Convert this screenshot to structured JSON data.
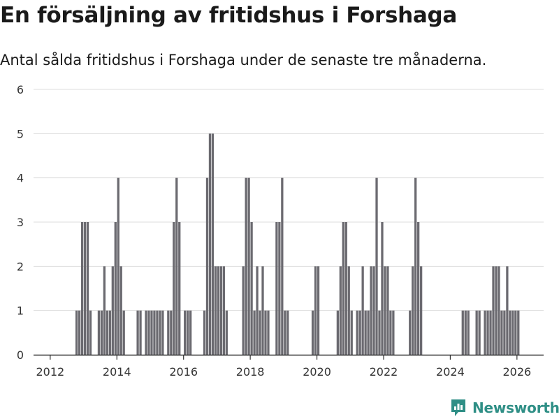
{
  "title": "En försäljning av fritidshus i Forshaga",
  "subtitle": "Antal sålda fritidshus i Forshaga under de senaste tre månaderna.",
  "brand": {
    "name": "Newsworthy",
    "color": "#2f8f86"
  },
  "colors": {
    "bar": "#6b6a70",
    "highlight": "#1aa394",
    "grid": "#dddddd",
    "axis": "#333333"
  },
  "chart_data": {
    "type": "bar",
    "title": "En försäljning av fritidshus i Forshaga",
    "xlabel": "",
    "ylabel": "",
    "ylim": [
      0,
      6
    ],
    "yticks": [
      "0",
      "1",
      "2",
      "3",
      "4",
      "5",
      "6"
    ],
    "xlim": [
      2011.5,
      2026.8
    ],
    "xticks": [
      "2012",
      "2014",
      "2016",
      "2018",
      "2020",
      "2022",
      "2024",
      "2026"
    ],
    "x_start": 2011.5,
    "x_step": 0.08333,
    "series": [
      {
        "name": "Antal sålda fritidshus",
        "values": [
          0,
          0,
          0,
          0,
          0,
          0,
          0,
          0,
          0,
          0,
          0,
          0,
          0,
          0,
          0,
          1,
          1,
          3,
          3,
          3,
          1,
          0,
          0,
          1,
          1,
          2,
          1,
          1,
          2,
          3,
          4,
          2,
          1,
          0,
          0,
          0,
          0,
          1,
          1,
          0,
          1,
          1,
          1,
          1,
          1,
          1,
          1,
          0,
          1,
          1,
          3,
          4,
          3,
          0,
          1,
          1,
          1,
          0,
          0,
          0,
          0,
          1,
          4,
          5,
          5,
          2,
          2,
          2,
          2,
          1,
          0,
          0,
          0,
          0,
          0,
          2,
          4,
          4,
          3,
          1,
          2,
          1,
          2,
          1,
          1,
          0,
          0,
          3,
          3,
          4,
          1,
          1,
          0,
          0,
          0,
          0,
          0,
          0,
          0,
          0,
          1,
          2,
          2,
          0,
          0,
          0,
          0,
          0,
          0,
          1,
          2,
          3,
          3,
          2,
          1,
          0,
          1,
          1,
          2,
          1,
          1,
          2,
          2,
          4,
          1,
          3,
          2,
          2,
          1,
          1,
          0,
          0,
          0,
          0,
          0,
          1,
          2,
          4,
          3,
          2,
          0,
          0,
          0,
          0,
          0,
          0,
          0,
          0,
          0,
          0,
          0,
          0,
          0,
          0,
          1,
          1,
          1,
          0,
          0,
          1,
          1,
          0,
          1,
          1,
          1,
          2,
          2,
          2,
          1,
          1,
          2,
          1,
          1,
          1,
          1
        ]
      }
    ],
    "annotations": [
      {
        "index": 175,
        "label": "1"
      }
    ]
  }
}
